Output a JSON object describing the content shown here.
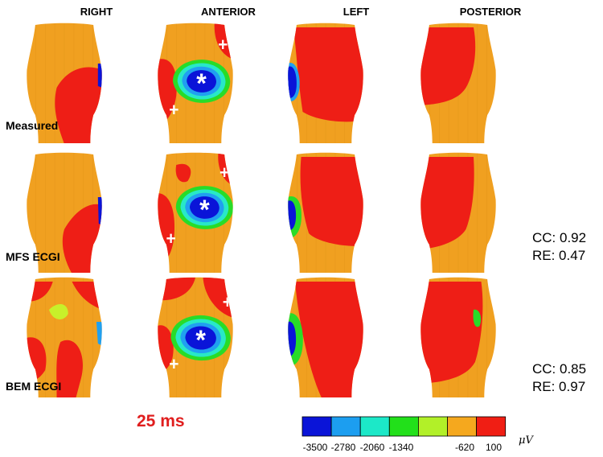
{
  "columns": [
    "RIGHT",
    "ANTERIOR",
    "LEFT",
    "POSTERIOR"
  ],
  "rows": [
    {
      "label": "Measured",
      "cc": "",
      "re": ""
    },
    {
      "label": "MFS ECGI",
      "cc": "CC: 0.92",
      "re": "RE: 0.47"
    },
    {
      "label": "BEM ECGI",
      "cc": "CC: 0.85",
      "re": "RE: 0.97"
    }
  ],
  "time_label": "25 ms",
  "colorbar": {
    "ticks": [
      "-3500",
      "-2780",
      "-2060",
      "-1340",
      "-620",
      "100"
    ],
    "unit": "μV",
    "colors": [
      "#0a14d8",
      "#1c9ef0",
      "#1ce8c8",
      "#22e01a",
      "#b2f028",
      "#f5a81e",
      "#f01e14"
    ]
  },
  "palette": {
    "orange": "#f0a020",
    "red": "#ee1e16",
    "yellow": "#c8f02a",
    "green": "#28dc28",
    "cyan": "#28e8c8",
    "sky": "#20a0f0",
    "blue": "#0a14d8"
  },
  "markers": {
    "plus": "+",
    "star": "*"
  }
}
